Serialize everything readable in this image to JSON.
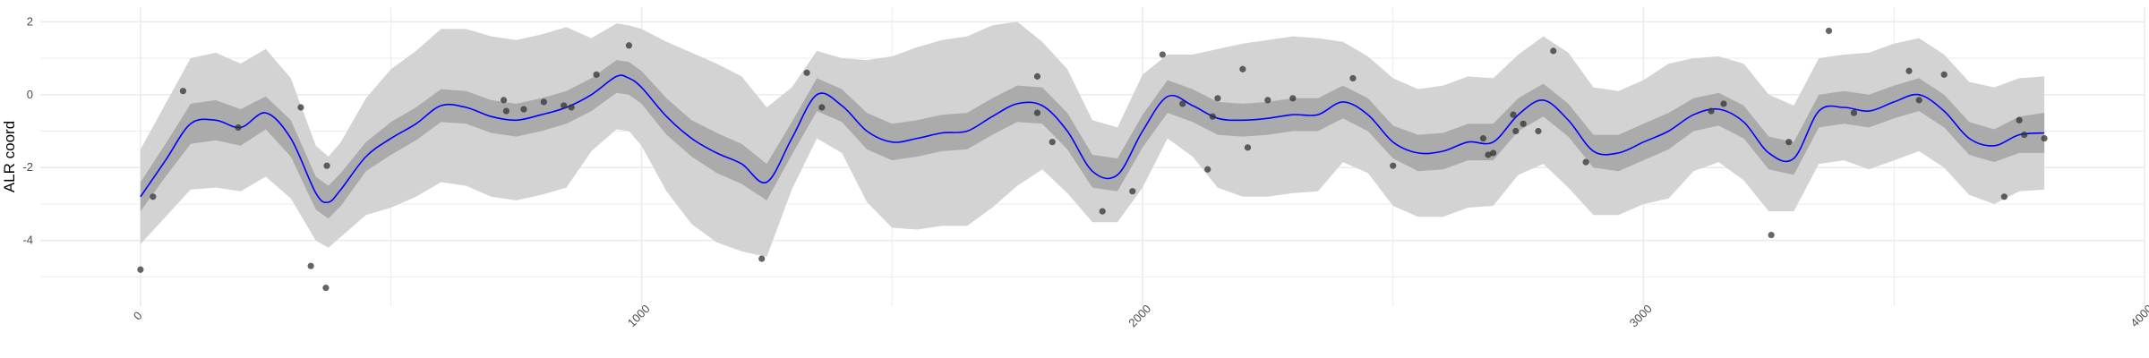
{
  "chart_data": {
    "type": "line",
    "title": "",
    "xlabel": "",
    "ylabel": "ALR coord",
    "xlim": [
      -200,
      4000
    ],
    "ylim": [
      -5.8,
      2.4
    ],
    "x_ticks": [
      0,
      1000,
      2000,
      3000,
      4000
    ],
    "x_tick_labels": [
      "0",
      "1000",
      "2000",
      "3000",
      "4000"
    ],
    "y_ticks": [
      -4,
      -2,
      0,
      2
    ],
    "y_tick_labels": [
      "-4",
      "-2",
      "0",
      "2"
    ],
    "grid": true,
    "legend": "none",
    "colors": {
      "line": "#0000ff",
      "inner_band": "#ababab",
      "outer_band": "#d3d3d3",
      "points": "#333333",
      "grid": "#ebebeb"
    },
    "fitted_line": {
      "x": [
        0,
        50,
        100,
        150,
        200,
        250,
        300,
        350,
        375,
        400,
        450,
        500,
        550,
        600,
        650,
        700,
        750,
        800,
        850,
        900,
        950,
        975,
        1000,
        1050,
        1100,
        1150,
        1200,
        1250,
        1300,
        1350,
        1400,
        1450,
        1500,
        1550,
        1600,
        1650,
        1700,
        1750,
        1800,
        1850,
        1900,
        1950,
        2000,
        2050,
        2100,
        2150,
        2200,
        2250,
        2300,
        2350,
        2400,
        2450,
        2500,
        2550,
        2600,
        2650,
        2700,
        2750,
        2800,
        2850,
        2900,
        2950,
        3000,
        3050,
        3100,
        3150,
        3200,
        3250,
        3300,
        3350,
        3400,
        3450,
        3500,
        3550,
        3600,
        3650,
        3700,
        3750,
        3800
      ],
      "y": [
        -2.8,
        -1.8,
        -0.8,
        -0.7,
        -0.9,
        -0.5,
        -1.2,
        -2.7,
        -2.95,
        -2.6,
        -1.7,
        -1.2,
        -0.8,
        -0.3,
        -0.35,
        -0.6,
        -0.7,
        -0.55,
        -0.35,
        0.0,
        0.5,
        0.45,
        0.2,
        -0.6,
        -1.2,
        -1.6,
        -1.9,
        -2.4,
        -1.2,
        0.0,
        -0.3,
        -1.0,
        -1.3,
        -1.2,
        -1.05,
        -1.0,
        -0.6,
        -0.25,
        -0.3,
        -1.0,
        -2.1,
        -2.2,
        -1.0,
        -0.05,
        -0.3,
        -0.65,
        -0.7,
        -0.65,
        -0.55,
        -0.55,
        -0.2,
        -0.55,
        -1.3,
        -1.6,
        -1.55,
        -1.3,
        -1.3,
        -0.55,
        -0.15,
        -0.7,
        -1.55,
        -1.6,
        -1.3,
        -1.0,
        -0.55,
        -0.4,
        -0.75,
        -1.6,
        -1.75,
        -0.45,
        -0.35,
        -0.45,
        -0.2,
        0.0,
        -0.45,
        -1.2,
        -1.4,
        -1.1,
        -1.05
      ],
      "inner_half_width": [
        0.4,
        0.45,
        0.55,
        0.55,
        0.5,
        0.45,
        0.5,
        0.45,
        0.45,
        0.45,
        0.4,
        0.45,
        0.45,
        0.45,
        0.45,
        0.45,
        0.45,
        0.45,
        0.45,
        0.45,
        0.45,
        0.45,
        0.45,
        0.5,
        0.5,
        0.55,
        0.55,
        0.5,
        0.45,
        0.45,
        0.45,
        0.5,
        0.5,
        0.5,
        0.5,
        0.5,
        0.5,
        0.5,
        0.5,
        0.5,
        0.45,
        0.45,
        0.45,
        0.45,
        0.45,
        0.45,
        0.45,
        0.45,
        0.45,
        0.45,
        0.45,
        0.45,
        0.45,
        0.5,
        0.5,
        0.5,
        0.5,
        0.45,
        0.45,
        0.45,
        0.45,
        0.5,
        0.5,
        0.5,
        0.45,
        0.45,
        0.45,
        0.45,
        0.45,
        0.45,
        0.45,
        0.45,
        0.45,
        0.45,
        0.45,
        0.45,
        0.45,
        0.5,
        0.55
      ],
      "outer_half_width": [
        1.3,
        1.55,
        1.8,
        1.85,
        1.75,
        1.75,
        1.65,
        1.3,
        1.25,
        1.3,
        1.6,
        1.9,
        2.0,
        2.1,
        2.15,
        2.2,
        2.2,
        2.2,
        2.2,
        1.55,
        1.45,
        1.45,
        1.6,
        2.05,
        2.35,
        2.45,
        2.4,
        2.05,
        1.4,
        1.2,
        1.3,
        1.95,
        2.35,
        2.5,
        2.55,
        2.6,
        2.5,
        2.25,
        1.75,
        1.7,
        1.4,
        1.3,
        1.55,
        1.15,
        1.4,
        1.9,
        2.1,
        2.15,
        2.15,
        2.1,
        1.65,
        1.6,
        1.75,
        1.75,
        1.8,
        1.8,
        1.75,
        1.65,
        1.75,
        1.85,
        1.75,
        1.7,
        1.7,
        1.85,
        1.55,
        1.45,
        1.6,
        1.6,
        1.45,
        1.45,
        1.45,
        1.6,
        1.6,
        1.55,
        1.55,
        1.55,
        1.6,
        1.55,
        1.55
      ]
    },
    "points": {
      "x": [
        0,
        25,
        85,
        195,
        320,
        340,
        370,
        372,
        725,
        730,
        765,
        805,
        845,
        860,
        910,
        975,
        1240,
        1330,
        1360,
        1790,
        1790,
        1820,
        1920,
        1980,
        2040,
        2080,
        2130,
        2140,
        2150,
        2200,
        2210,
        2250,
        2300,
        2420,
        2500,
        2680,
        2690,
        2700,
        2740,
        2745,
        2760,
        2790,
        2820,
        2885,
        3135,
        3160,
        3255,
        3290,
        3370,
        3420,
        3530,
        3550,
        3600,
        3720,
        3750,
        3760,
        3800
      ],
      "y": [
        -4.8,
        -2.8,
        0.1,
        -0.9,
        -0.35,
        -4.7,
        -5.3,
        -1.95,
        -0.15,
        -0.45,
        -0.4,
        -0.2,
        -0.3,
        -0.35,
        0.55,
        1.35,
        -4.5,
        0.6,
        -0.35,
        0.5,
        -0.5,
        -1.3,
        -3.2,
        -2.65,
        1.1,
        -0.25,
        -2.05,
        -0.6,
        -0.1,
        0.7,
        -1.45,
        -0.15,
        -0.1,
        0.45,
        -1.95,
        -1.2,
        -1.65,
        -1.6,
        -0.55,
        -1.0,
        -0.8,
        -1.0,
        1.2,
        -1.85,
        -0.45,
        -0.25,
        -3.85,
        -1.3,
        1.75,
        -0.5,
        0.65,
        -0.15,
        0.55,
        -2.8,
        -0.7,
        -1.1,
        -1.2
      ]
    }
  }
}
